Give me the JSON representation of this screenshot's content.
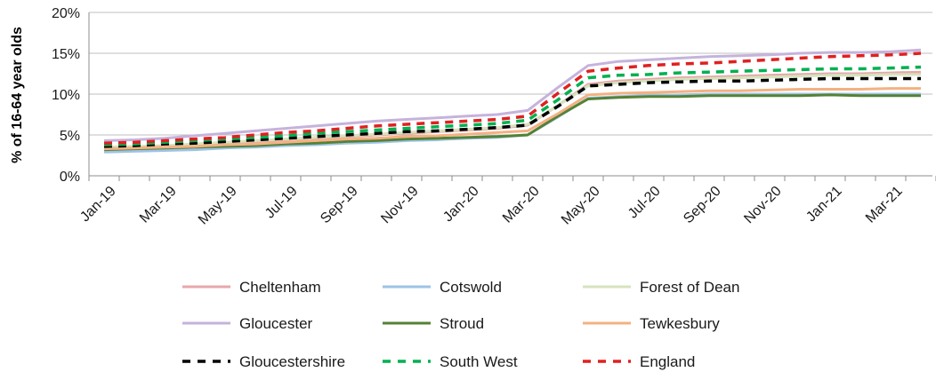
{
  "chart_data": {
    "type": "line",
    "ylabel": "% of 16-64 year olds",
    "ylim": [
      0,
      20
    ],
    "yticks": [
      "0%",
      "5%",
      "10%",
      "15%",
      "20%"
    ],
    "ytick_values": [
      0,
      5,
      10,
      15,
      20
    ],
    "categories": [
      "Jan-19",
      "Feb-19",
      "Mar-19",
      "Apr-19",
      "May-19",
      "Jun-19",
      "Jul-19",
      "Aug-19",
      "Sep-19",
      "Oct-19",
      "Nov-19",
      "Dec-19",
      "Jan-20",
      "Feb-20",
      "Mar-20",
      "Apr-20",
      "May-20",
      "Jun-20",
      "Jul-20",
      "Aug-20",
      "Sep-20",
      "Oct-20",
      "Nov-20",
      "Dec-20",
      "Jan-21",
      "Feb-21",
      "Mar-21",
      "Apr-21"
    ],
    "xtick_labels": [
      "Jan-19",
      "Mar-19",
      "May-19",
      "Jul-19",
      "Sep-19",
      "Nov-19",
      "Jan-20",
      "Mar-20",
      "May-20",
      "Jul-20",
      "Sep-20",
      "Nov-20",
      "Jan-21",
      "Mar-21"
    ],
    "grid": "horizontal",
    "legend_position": "bottom",
    "series": [
      {
        "name": "Cheltenham",
        "color": "#e8a7ab",
        "style": "solid",
        "values": [
          3.4,
          3.5,
          3.6,
          3.8,
          4.0,
          4.2,
          4.4,
          4.6,
          4.8,
          5.0,
          5.2,
          5.4,
          5.6,
          5.8,
          6.2,
          8.6,
          11.2,
          11.6,
          11.8,
          12.0,
          12.1,
          12.2,
          12.3,
          12.4,
          12.5,
          12.5,
          12.6,
          12.7
        ]
      },
      {
        "name": "Cotswold",
        "color": "#9dc3e6",
        "style": "solid",
        "values": [
          2.9,
          3.0,
          3.1,
          3.2,
          3.4,
          3.5,
          3.7,
          3.8,
          4.0,
          4.1,
          4.3,
          4.4,
          4.6,
          4.7,
          5.0,
          7.2,
          9.5,
          9.7,
          9.8,
          9.9,
          10.0,
          10.0,
          10.0,
          10.0,
          10.0,
          10.0,
          10.0,
          10.0
        ]
      },
      {
        "name": "Forest of Dean",
        "color": "#d6e3bc",
        "style": "solid",
        "values": [
          3.5,
          3.6,
          3.7,
          3.9,
          4.1,
          4.3,
          4.5,
          4.7,
          4.9,
          5.1,
          5.3,
          5.5,
          5.7,
          5.9,
          6.3,
          8.6,
          11.0,
          11.4,
          11.6,
          11.8,
          11.9,
          12.0,
          12.1,
          12.2,
          12.3,
          12.3,
          12.4,
          12.4
        ]
      },
      {
        "name": "Gloucester",
        "color": "#c5b3dc",
        "style": "solid",
        "values": [
          4.3,
          4.4,
          4.6,
          4.9,
          5.2,
          5.5,
          5.8,
          6.1,
          6.4,
          6.7,
          6.9,
          7.1,
          7.3,
          7.5,
          8.0,
          10.8,
          13.5,
          14.0,
          14.2,
          14.4,
          14.6,
          14.7,
          14.8,
          15.0,
          15.1,
          15.1,
          15.2,
          15.4
        ]
      },
      {
        "name": "Stroud",
        "color": "#548235",
        "style": "solid",
        "values": [
          3.2,
          3.3,
          3.4,
          3.5,
          3.6,
          3.7,
          3.9,
          4.0,
          4.2,
          4.3,
          4.5,
          4.6,
          4.7,
          4.8,
          5.0,
          7.3,
          9.4,
          9.6,
          9.7,
          9.7,
          9.8,
          9.8,
          9.8,
          9.8,
          9.9,
          9.8,
          9.8,
          9.8
        ]
      },
      {
        "name": "Tewkesbury",
        "color": "#f4b183",
        "style": "solid",
        "values": [
          3.3,
          3.4,
          3.5,
          3.6,
          3.8,
          3.9,
          4.1,
          4.3,
          4.5,
          4.6,
          4.8,
          4.9,
          5.1,
          5.3,
          5.5,
          7.6,
          9.9,
          10.1,
          10.2,
          10.3,
          10.4,
          10.4,
          10.5,
          10.6,
          10.6,
          10.6,
          10.7,
          10.7
        ]
      },
      {
        "name": "Gloucestershire",
        "color": "#000000",
        "style": "dashed",
        "values": [
          3.6,
          3.7,
          3.9,
          4.0,
          4.2,
          4.4,
          4.6,
          4.8,
          5.0,
          5.2,
          5.4,
          5.5,
          5.7,
          5.9,
          6.2,
          8.5,
          11.0,
          11.2,
          11.4,
          11.5,
          11.6,
          11.6,
          11.7,
          11.8,
          11.9,
          11.9,
          11.9,
          11.9
        ]
      },
      {
        "name": "South West",
        "color": "#00b050",
        "style": "dashed",
        "values": [
          3.8,
          3.9,
          4.1,
          4.3,
          4.5,
          4.7,
          4.9,
          5.2,
          5.4,
          5.6,
          5.8,
          6.0,
          6.2,
          6.4,
          6.8,
          9.3,
          12.0,
          12.3,
          12.4,
          12.6,
          12.7,
          12.8,
          12.9,
          13.0,
          13.1,
          13.1,
          13.2,
          13.3
        ]
      },
      {
        "name": "England",
        "color": "#e02020",
        "style": "dashed",
        "values": [
          4.0,
          4.1,
          4.3,
          4.5,
          4.7,
          5.0,
          5.3,
          5.5,
          5.8,
          6.1,
          6.3,
          6.5,
          6.7,
          6.9,
          7.3,
          10.1,
          12.8,
          13.2,
          13.5,
          13.7,
          13.8,
          14.0,
          14.2,
          14.4,
          14.6,
          14.7,
          14.8,
          15.0
        ]
      }
    ]
  }
}
